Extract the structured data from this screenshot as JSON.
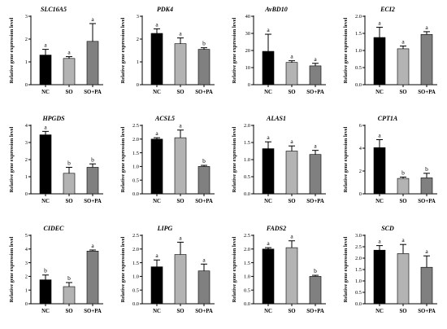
{
  "colors": {
    "NC": "#000000",
    "SO": "#b3b3b3",
    "SO+PA": "#808080",
    "axis": "#000000"
  },
  "chart_data": [
    {
      "type": "bar",
      "title": "SLC16A5",
      "ylabel": "Relative gene expression level",
      "categories": [
        "NC",
        "SO",
        "SO+PA"
      ],
      "values": [
        1.3,
        1.15,
        1.9
      ],
      "errors": [
        0.25,
        0.08,
        0.78
      ],
      "letters": [
        "a",
        "a",
        "a"
      ],
      "ylim": [
        0,
        3
      ],
      "yticks": [
        "0",
        "1",
        "2",
        "3"
      ]
    },
    {
      "type": "bar",
      "title": "PDK4",
      "ylabel": "Relative gene expression level",
      "categories": [
        "NC",
        "SO",
        "SO+PA"
      ],
      "values": [
        2.25,
        1.8,
        1.55
      ],
      "errors": [
        0.2,
        0.25,
        0.07
      ],
      "letters": [
        "a",
        "a",
        "b"
      ],
      "ylim": [
        0,
        3
      ],
      "yticks": [
        "0",
        "1",
        "2",
        "3"
      ]
    },
    {
      "type": "bar",
      "title": "AvBD10",
      "ylabel": "Relative gene expression level",
      "categories": [
        "NC",
        "SO",
        "SO+PA"
      ],
      "values": [
        19.5,
        13,
        11
      ],
      "errors": [
        10,
        1,
        1.5
      ],
      "letters": [
        "a",
        "a",
        "a"
      ],
      "ylim": [
        0,
        40
      ],
      "yticks": [
        "0",
        "10",
        "20",
        "30",
        "40"
      ]
    },
    {
      "type": "bar",
      "title": "ECI2",
      "ylabel": "Relative gene expression level",
      "categories": [
        "NC",
        "SO",
        "SO+PA"
      ],
      "values": [
        1.38,
        1.05,
        1.47
      ],
      "errors": [
        0.3,
        0.08,
        0.08
      ],
      "letters": [
        "a",
        "a",
        "a"
      ],
      "ylim": [
        0,
        2
      ],
      "yticks": [
        "0.0",
        "0.5",
        "1.0",
        "1.5",
        "2.0"
      ]
    },
    {
      "type": "bar",
      "title": "HPGDS",
      "ylabel": "Relative gene expression level",
      "categories": [
        "NC",
        "SO",
        "SO+PA"
      ],
      "values": [
        3.45,
        1.2,
        1.55
      ],
      "errors": [
        0.2,
        0.35,
        0.2
      ],
      "letters": [
        "a",
        "b",
        "b"
      ],
      "ylim": [
        0,
        4
      ],
      "yticks": [
        "0",
        "1",
        "2",
        "3",
        "4"
      ]
    },
    {
      "type": "bar",
      "title": "ACSL5",
      "ylabel": "Relative gene expression level",
      "categories": [
        "NC",
        "SO",
        "SO+PA"
      ],
      "values": [
        2.0,
        2.05,
        1.0
      ],
      "errors": [
        0.05,
        0.28,
        0.04
      ],
      "letters": [
        "a",
        "a",
        "b"
      ],
      "ylim": [
        0,
        2.5
      ],
      "yticks": [
        "0.0",
        "0.5",
        "1.0",
        "1.5",
        "2.0",
        "2.5"
      ]
    },
    {
      "type": "bar",
      "title": "ALAS1",
      "ylabel": "Relative gene expression level",
      "categories": [
        "NC",
        "SO",
        "SO+PA"
      ],
      "values": [
        1.32,
        1.25,
        1.15
      ],
      "errors": [
        0.2,
        0.15,
        0.12
      ],
      "letters": [
        "a",
        "a",
        "a"
      ],
      "ylim": [
        0,
        2
      ],
      "yticks": [
        "0.0",
        "0.5",
        "1.0",
        "1.5",
        "2.0"
      ]
    },
    {
      "type": "bar",
      "title": "CPT1A",
      "ylabel": "Relative gene expression level",
      "categories": [
        "NC",
        "SO",
        "SO+PA"
      ],
      "values": [
        4.05,
        1.35,
        1.4
      ],
      "errors": [
        0.7,
        0.12,
        0.4
      ],
      "letters": [
        "a",
        "b",
        "b"
      ],
      "ylim": [
        0,
        6
      ],
      "yticks": [
        "0",
        "2",
        "4",
        "6"
      ]
    },
    {
      "type": "bar",
      "title": "CIDEC",
      "ylabel": "Relative gene expression level",
      "categories": [
        "NC",
        "SO",
        "SO+PA"
      ],
      "values": [
        1.75,
        1.25,
        3.85
      ],
      "errors": [
        0.35,
        0.3,
        0.08
      ],
      "letters": [
        "b",
        "b",
        "a"
      ],
      "ylim": [
        0,
        5
      ],
      "yticks": [
        "0",
        "1",
        "2",
        "3",
        "4",
        "5"
      ]
    },
    {
      "type": "bar",
      "title": "LIPG",
      "ylabel": "Relative gene expression level",
      "categories": [
        "NC",
        "SO",
        "SO+PA"
      ],
      "values": [
        1.35,
        1.8,
        1.2
      ],
      "errors": [
        0.25,
        0.45,
        0.25
      ],
      "letters": [
        "a",
        "a",
        "a"
      ],
      "ylim": [
        0,
        2.5
      ],
      "yticks": [
        "0.0",
        "0.5",
        "1.0",
        "1.5",
        "2.0",
        "2.5"
      ]
    },
    {
      "type": "bar",
      "title": "FADS2",
      "ylabel": "Relative gene expression level",
      "categories": [
        "NC",
        "SO",
        "SO+PA"
      ],
      "values": [
        2.0,
        2.05,
        1.0
      ],
      "errors": [
        0.05,
        0.25,
        0.04
      ],
      "letters": [
        "a",
        "a",
        "b"
      ],
      "ylim": [
        0,
        2.5
      ],
      "yticks": [
        "0.0",
        "0.5",
        "1.0",
        "1.5",
        "2.0",
        "2.5"
      ]
    },
    {
      "type": "bar",
      "title": "SCD",
      "ylabel": "Relative gene expression level",
      "categories": [
        "NC",
        "SO",
        "SO+PA"
      ],
      "values": [
        2.35,
        2.2,
        1.6
      ],
      "errors": [
        0.2,
        0.4,
        0.5
      ],
      "letters": [
        "a",
        "a",
        "a"
      ],
      "ylim": [
        0,
        3
      ],
      "yticks": [
        "0.0",
        "0.5",
        "1.0",
        "1.5",
        "2.0",
        "2.5",
        "3.0"
      ]
    }
  ]
}
